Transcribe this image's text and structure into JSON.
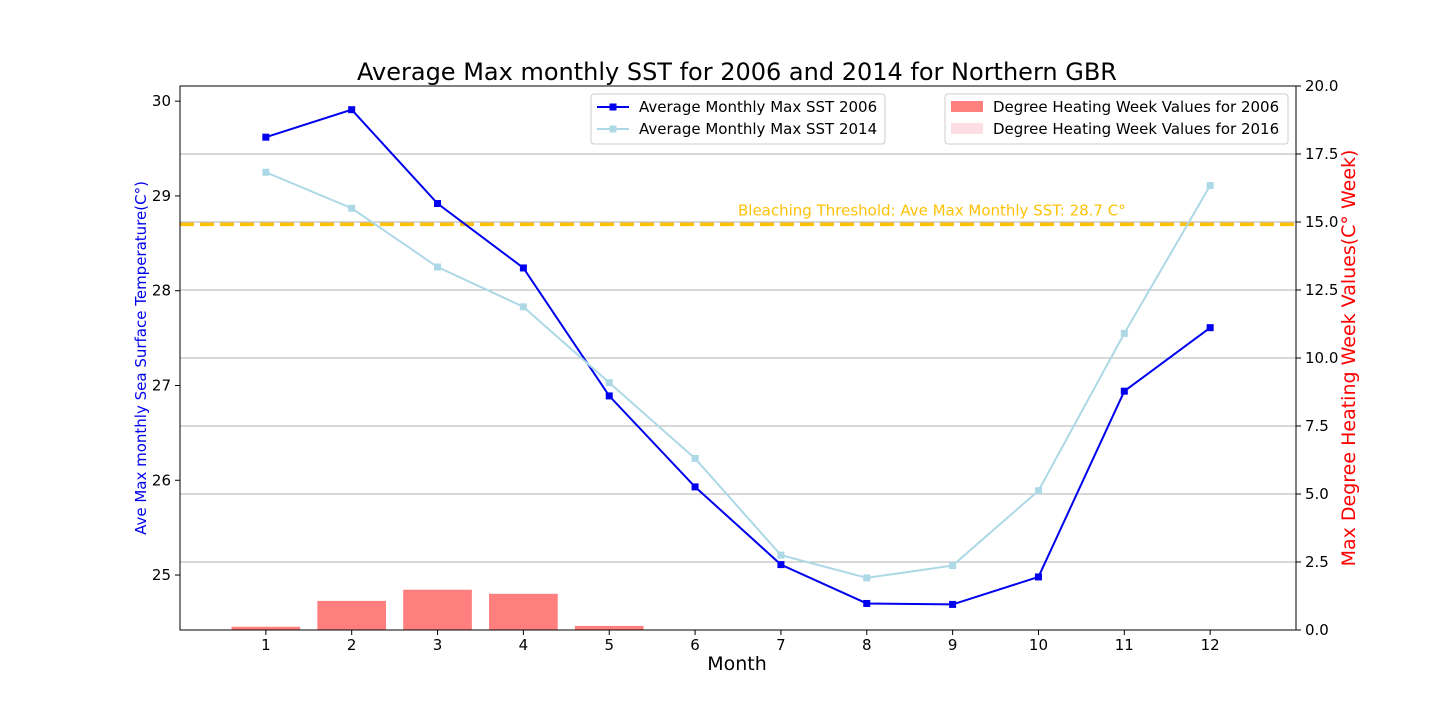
{
  "chart_data": {
    "type": "line",
    "title": "Average Max monthly SST for 2006 and 2014 for Northern GBR",
    "xlabel": "Month",
    "ylabel": "Ave Max monthly Sea Surface Temperature(C°)",
    "y2label": "Max Degree Heating Week Values(C° Week)",
    "x": [
      1,
      2,
      3,
      4,
      5,
      6,
      7,
      8,
      9,
      10,
      11,
      12
    ],
    "xlim": [
      0,
      13
    ],
    "ylim": [
      24.42,
      30.16
    ],
    "y2lim": [
      0,
      20
    ],
    "yticks": [
      25,
      26,
      27,
      28,
      29,
      30
    ],
    "y2ticks": [
      "0.0",
      "2.5",
      "5.0",
      "7.5",
      "10.0",
      "12.5",
      "15.0",
      "17.5",
      "20.0"
    ],
    "grid": "right-axis horizontal",
    "series": [
      {
        "name": "Average Monthly Max SST 2006",
        "axis": "left",
        "color": "#0000ee",
        "values": [
          29.62,
          29.91,
          28.92,
          28.24,
          26.89,
          25.93,
          25.11,
          24.7,
          24.69,
          24.98,
          26.94,
          27.61
        ]
      },
      {
        "name": "Average Monthly Max SST 2014",
        "axis": "left",
        "color": "#add8e6",
        "values": [
          29.25,
          28.87,
          28.25,
          27.83,
          27.03,
          26.23,
          25.21,
          24.97,
          25.1,
          25.89,
          27.55,
          29.11
        ]
      }
    ],
    "bar_series": [
      {
        "name": "Degree Heating Week Values for 2006",
        "axis": "right",
        "color": "#ff7f7f",
        "values": [
          0.12,
          1.07,
          1.48,
          1.33,
          0.15,
          0,
          0,
          0,
          0,
          0,
          0,
          0
        ]
      },
      {
        "name": "Degree Heating Week Values for 2016",
        "axis": "right",
        "color": "#ffdde4",
        "values": [
          0,
          0,
          0,
          0,
          0,
          0,
          0,
          0,
          0,
          0,
          0,
          0
        ]
      }
    ],
    "threshold": {
      "value": 28.7,
      "label": "Bleaching Threshold: Ave Max Monthly SST: 28.7 C°",
      "color": "#ffc107"
    },
    "legend_lines_placement": "top-center",
    "legend_bars_placement": "top-right",
    "left_label_color": "#0000ee",
    "right_label_color": "#ff0000"
  }
}
